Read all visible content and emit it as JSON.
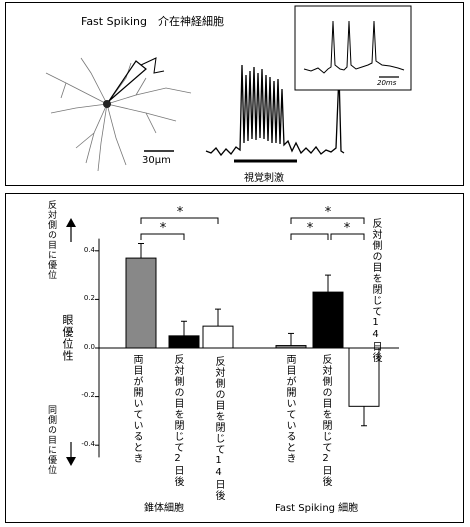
{
  "top": {
    "title": "Fast Spiking　介在神経細胞",
    "scalebar_label": "30μm",
    "stimulus_label": "視覚刺激",
    "inset_scale_label": "20ms"
  },
  "chart_data": {
    "type": "bar",
    "groups": [
      {
        "name": "錐体細胞",
        "categories": [
          "両目が開いているとき",
          "反対側の目を閉じて2日後",
          "反対側の目を閉じて14日後"
        ],
        "values": [
          0.37,
          0.05,
          0.09
        ],
        "errors": [
          0.06,
          0.06,
          0.07
        ],
        "colors": [
          "#888888",
          "#000000",
          "#ffffff"
        ],
        "significance": [
          "*",
          "*"
        ]
      },
      {
        "name": "Fast Spiking 細胞",
        "categories": [
          "両目が開いているとき",
          "反対側の目を閉じて2日後",
          "反対側の目を閉じて14日後"
        ],
        "values": [
          0.01,
          0.23,
          -0.24
        ],
        "errors": [
          0.05,
          0.07,
          0.08
        ],
        "colors": [
          "#888888",
          "#000000",
          "#ffffff"
        ],
        "significance": [
          "*",
          "*",
          "*"
        ]
      }
    ],
    "ylabel": "眼優位性",
    "yticks": [
      "0.4",
      "0.2",
      "0.0",
      "-0.2",
      "-0.4"
    ],
    "ylim": [
      -0.45,
      0.45
    ],
    "y_top_label": "反対側の目に優位",
    "y_bottom_label": "同側の目に優位"
  }
}
